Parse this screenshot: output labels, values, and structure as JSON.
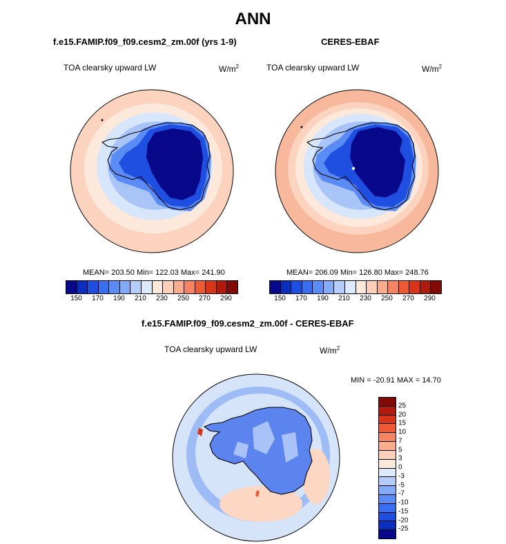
{
  "figure_title": "ANN",
  "panels": {
    "model": {
      "title": "f.e15.FAMIP.f09_f09.cesm2_zm.00f (yrs 1-9)",
      "variable": "TOA clearsky upward LW",
      "units_base": "W/m",
      "units_exp": "2",
      "stats": "MEAN= 203.50  Min= 122.03  Max= 241.90"
    },
    "obs": {
      "title": "CERES-EBAF",
      "variable": "TOA clearsky upward LW",
      "units_base": "W/m",
      "units_exp": "2",
      "stats": "MEAN= 206.09  Min= 126.80  Max= 248.76"
    },
    "diff": {
      "title": "f.e15.FAMIP.f09_f09.cesm2_zm.00f - CERES-EBAF",
      "variable": "TOA clearsky upward LW",
      "units_base": "W/m",
      "units_exp": "2",
      "stats": "MIN = -20.91  MAX =  14.70"
    }
  },
  "colorbars": {
    "main": {
      "tick_labels": [
        "150",
        "170",
        "190",
        "210",
        "230",
        "250",
        "270",
        "290"
      ],
      "colors": [
        "#08088a",
        "#0a2fbf",
        "#1f4fe0",
        "#3a6ef0",
        "#5b8cf5",
        "#85aaf7",
        "#b5cdfa",
        "#dde9fc",
        "#fde8dc",
        "#fbcfb8",
        "#f7ad8e",
        "#f58462",
        "#ee5a34",
        "#d8341a",
        "#b01a0c",
        "#800a05"
      ]
    },
    "diff": {
      "tick_labels": [
        "25",
        "20",
        "15",
        "10",
        "7",
        "5",
        "3",
        "0",
        "-3",
        "-5",
        "-7",
        "-10",
        "-15",
        "-20",
        "-25"
      ],
      "colors": [
        "#800a05",
        "#b01a0c",
        "#d8341a",
        "#ee5a34",
        "#f58462",
        "#f7ad8e",
        "#fbcfb8",
        "#fde8dc",
        "#dde9fc",
        "#b5cdfa",
        "#85aaf7",
        "#5b8cf5",
        "#3a6ef0",
        "#1f4fe0",
        "#0a2fbf",
        "#08088a"
      ]
    }
  },
  "map_colors": {
    "outer": "#fbd3bf",
    "ring_light": "#fde8dc",
    "ring_pale_blue": "#d8e6fb",
    "ring_blue": "#a9c4f6",
    "coast_blue": "#5b8cf5",
    "inland": "#1f4fe0",
    "plateau": "#08088a",
    "obs_outer": "#f7b89c",
    "diff_background": "#d6e4fa",
    "diff_ocean": "#8eb1f5",
    "diff_land": "#5b84ef",
    "diff_pos": "#fbd7c4",
    "coastline": "#000000"
  }
}
